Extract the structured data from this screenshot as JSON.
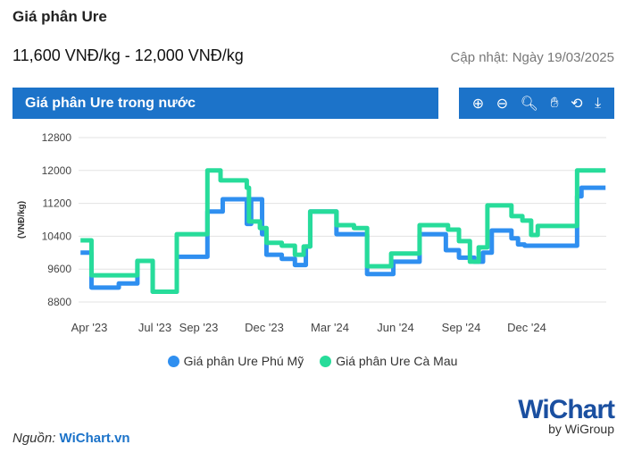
{
  "header": {
    "title": "Giá phân Ure",
    "price_range": "11,600 VNĐ/kg - 12,000 VNĐ/kg",
    "updated": "Cập nhật: Ngày 19/03/2025"
  },
  "panel": {
    "title": "Giá phân Ure trong nước"
  },
  "toolbar": {
    "icons": [
      "zoom-in-icon",
      "zoom-out-icon",
      "magnifier-icon",
      "pan-hand-icon",
      "reset-icon",
      "download-icon"
    ]
  },
  "footer": {
    "source_label": "Nguồn:",
    "source_name": "WiChart.vn",
    "logo_text": "WiChart",
    "logo_sub": "by WiGroup"
  },
  "chart_data": {
    "type": "line",
    "step": true,
    "ylabel": "(VNĐ/kg)",
    "ylim": [
      8800,
      12800
    ],
    "yticks": [
      8800,
      9600,
      10400,
      11200,
      12000,
      12800
    ],
    "x_unit": "months since Apr 2023",
    "xticks": [
      {
        "m": 0,
        "label": "Apr '23"
      },
      {
        "m": 3,
        "label": "Jul '23"
      },
      {
        "m": 5,
        "label": "Sep '23"
      },
      {
        "m": 8,
        "label": "Dec '23"
      },
      {
        "m": 11,
        "label": "Mar '24"
      },
      {
        "m": 14,
        "label": "Jun '24"
      },
      {
        "m": 17,
        "label": "Sep '24"
      },
      {
        "m": 20,
        "label": "Dec '24"
      }
    ],
    "x_end": 23.6,
    "grid": true,
    "legend_position": "bottom",
    "series": [
      {
        "name": "Giá phân Ure Phú Mỹ",
        "color": "#2f8ff0",
        "points": [
          [
            -0.4,
            10000
          ],
          [
            0.1,
            9150
          ],
          [
            1.35,
            9250
          ],
          [
            2.2,
            9800
          ],
          [
            2.9,
            9050
          ],
          [
            4.0,
            9900
          ],
          [
            5.4,
            11000
          ],
          [
            6.1,
            11300
          ],
          [
            7.2,
            10700
          ],
          [
            7.4,
            11300
          ],
          [
            7.9,
            10450
          ],
          [
            8.1,
            9950
          ],
          [
            8.8,
            9850
          ],
          [
            9.4,
            9700
          ],
          [
            9.9,
            10150
          ],
          [
            10.1,
            11000
          ],
          [
            11.3,
            10450
          ],
          [
            12.7,
            9480
          ],
          [
            13.9,
            9780
          ],
          [
            15.1,
            10450
          ],
          [
            16.3,
            10060
          ],
          [
            16.9,
            9880
          ],
          [
            17.6,
            9780
          ],
          [
            18.0,
            10000
          ],
          [
            18.4,
            10540
          ],
          [
            19.3,
            10350
          ],
          [
            19.6,
            10200
          ],
          [
            19.9,
            10170
          ],
          [
            22.3,
            11370
          ],
          [
            22.5,
            11580
          ]
        ]
      },
      {
        "name": "Giá phân Ure Cà Mau",
        "color": "#27dc9a",
        "points": [
          [
            -0.4,
            10300
          ],
          [
            0.1,
            9450
          ],
          [
            2.2,
            9800
          ],
          [
            2.9,
            9050
          ],
          [
            4.0,
            10450
          ],
          [
            5.4,
            12000
          ],
          [
            6.0,
            11760
          ],
          [
            7.2,
            11580
          ],
          [
            7.3,
            10760
          ],
          [
            7.8,
            10600
          ],
          [
            8.1,
            10240
          ],
          [
            8.8,
            10170
          ],
          [
            9.4,
            9950
          ],
          [
            9.8,
            10150
          ],
          [
            10.1,
            11000
          ],
          [
            11.3,
            10670
          ],
          [
            12.1,
            10600
          ],
          [
            12.7,
            9670
          ],
          [
            13.8,
            9980
          ],
          [
            15.1,
            10670
          ],
          [
            16.4,
            10560
          ],
          [
            16.9,
            10280
          ],
          [
            17.4,
            9780
          ],
          [
            17.8,
            10130
          ],
          [
            18.2,
            11150
          ],
          [
            19.3,
            10890
          ],
          [
            19.8,
            10780
          ],
          [
            20.2,
            10430
          ],
          [
            20.5,
            10650
          ],
          [
            22.3,
            12000
          ]
        ]
      }
    ]
  }
}
